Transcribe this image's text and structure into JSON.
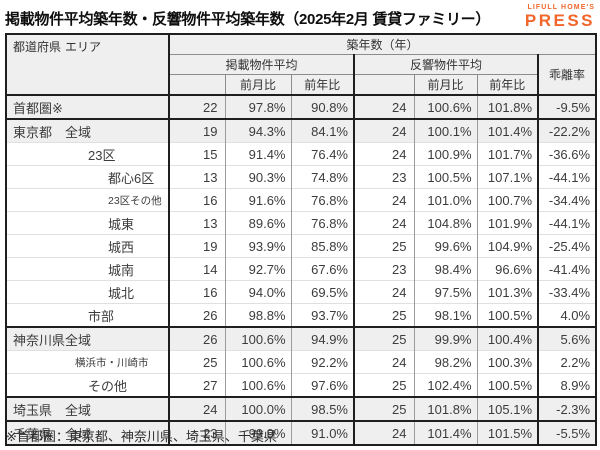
{
  "page": {
    "title": "掲載物件平均築年数・反響物件平均築年数（2025年2月 賃貸ファミリー）",
    "logo": {
      "top": "LIFULL HOME'S",
      "main": "PRESS",
      "color": "#F0662B"
    },
    "footnote": "※首都圏：東京都、神奈川県、埼玉県、千葉県"
  },
  "table": {
    "header": {
      "corner_pref": "都道府県",
      "corner_area": "エリア",
      "top": "築年数（年）",
      "group_listed": "掲載物件平均",
      "group_response": "反響物件平均",
      "deviation": "乖離率",
      "sub_mom": "前月比",
      "sub_yoy": "前年比"
    },
    "rows": [
      {
        "pref": "首都圏※",
        "area": "",
        "indent": 0,
        "small": false,
        "shaded": true,
        "group": false,
        "cells": [
          "22",
          "97.8%",
          "90.8%",
          "24",
          "100.6%",
          "101.8%",
          "-9.5%"
        ]
      },
      {
        "pref": "東京都",
        "area": "全域",
        "indent": 0,
        "small": false,
        "shaded": true,
        "group": true,
        "cells": [
          "19",
          "94.3%",
          "84.1%",
          "24",
          "100.1%",
          "101.4%",
          "-22.2%"
        ]
      },
      {
        "pref": "23区",
        "area": "",
        "indent": 1,
        "small": false,
        "shaded": false,
        "group": false,
        "cells": [
          "15",
          "91.4%",
          "76.4%",
          "24",
          "100.9%",
          "101.7%",
          "-36.6%"
        ]
      },
      {
        "pref": "都心6区",
        "area": "",
        "indent": 2,
        "small": false,
        "shaded": false,
        "group": false,
        "cells": [
          "13",
          "90.3%",
          "74.8%",
          "23",
          "100.5%",
          "107.1%",
          "-44.1%"
        ]
      },
      {
        "pref": "23区その他",
        "area": "",
        "indent": 2,
        "small": true,
        "shaded": false,
        "group": false,
        "cells": [
          "16",
          "91.6%",
          "76.8%",
          "24",
          "101.0%",
          "100.7%",
          "-34.4%"
        ]
      },
      {
        "pref": "城東",
        "area": "",
        "indent": 2,
        "small": false,
        "shaded": false,
        "group": false,
        "cells": [
          "13",
          "89.6%",
          "76.8%",
          "24",
          "104.8%",
          "101.9%",
          "-44.1%"
        ]
      },
      {
        "pref": "城西",
        "area": "",
        "indent": 2,
        "small": false,
        "shaded": false,
        "group": false,
        "cells": [
          "19",
          "93.9%",
          "85.8%",
          "25",
          "99.6%",
          "104.9%",
          "-25.4%"
        ]
      },
      {
        "pref": "城南",
        "area": "",
        "indent": 2,
        "small": false,
        "shaded": false,
        "group": false,
        "cells": [
          "14",
          "92.7%",
          "67.6%",
          "23",
          "98.4%",
          "96.6%",
          "-41.4%"
        ]
      },
      {
        "pref": "城北",
        "area": "",
        "indent": 2,
        "small": false,
        "shaded": false,
        "group": false,
        "cells": [
          "16",
          "94.0%",
          "69.5%",
          "24",
          "97.5%",
          "101.3%",
          "-33.4%"
        ]
      },
      {
        "pref": "市部",
        "area": "",
        "indent": 1,
        "small": false,
        "shaded": false,
        "group": false,
        "cells": [
          "26",
          "98.8%",
          "93.7%",
          "25",
          "98.1%",
          "100.5%",
          "4.0%"
        ]
      },
      {
        "pref": "神奈川県",
        "area": "全域",
        "indent": 0,
        "small": false,
        "shaded": true,
        "group": true,
        "cells": [
          "26",
          "100.6%",
          "94.9%",
          "25",
          "99.9%",
          "100.4%",
          "5.6%"
        ]
      },
      {
        "pref": "横浜市・川崎市",
        "area": "",
        "indent": 1,
        "small": true,
        "shaded": false,
        "group": false,
        "cells": [
          "25",
          "100.6%",
          "92.2%",
          "24",
          "98.2%",
          "100.3%",
          "2.2%"
        ]
      },
      {
        "pref": "その他",
        "area": "",
        "indent": 1,
        "small": false,
        "shaded": false,
        "group": false,
        "cells": [
          "27",
          "100.6%",
          "97.6%",
          "25",
          "102.4%",
          "100.5%",
          "8.9%"
        ]
      },
      {
        "pref": "埼玉県",
        "area": "全域",
        "indent": 0,
        "small": false,
        "shaded": true,
        "group": true,
        "cells": [
          "24",
          "100.0%",
          "98.5%",
          "25",
          "101.8%",
          "105.1%",
          "-2.3%"
        ]
      },
      {
        "pref": "千葉県",
        "area": "全域",
        "indent": 0,
        "small": false,
        "shaded": true,
        "group": true,
        "cells": [
          "23",
          "99.9%",
          "91.0%",
          "24",
          "101.4%",
          "101.5%",
          "-5.5%"
        ]
      }
    ]
  },
  "chart_data": {
    "type": "table",
    "title": "掲載物件平均築年数・反響物件平均築年数（2025年2月 賃貸ファミリー）",
    "column_groups": [
      "都道府県 エリア",
      "築年数（年） 掲載物件平均",
      "築年数（年） 反響物件平均",
      "乖離率"
    ],
    "columns": [
      "都道府県 エリア",
      "掲載物件平均",
      "前月比",
      "前年比",
      "反響物件平均",
      "前月比",
      "前年比",
      "乖離率"
    ],
    "rows": [
      [
        "首都圏※",
        22,
        "97.8%",
        "90.8%",
        24,
        "100.6%",
        "101.8%",
        "-9.5%"
      ],
      [
        "東京都 全域",
        19,
        "94.3%",
        "84.1%",
        24,
        "100.1%",
        "101.4%",
        "-22.2%"
      ],
      [
        "東京都 23区",
        15,
        "91.4%",
        "76.4%",
        24,
        "100.9%",
        "101.7%",
        "-36.6%"
      ],
      [
        "東京都 都心6区",
        13,
        "90.3%",
        "74.8%",
        23,
        "100.5%",
        "107.1%",
        "-44.1%"
      ],
      [
        "東京都 23区その他",
        16,
        "91.6%",
        "76.8%",
        24,
        "101.0%",
        "100.7%",
        "-34.4%"
      ],
      [
        "東京都 城東",
        13,
        "89.6%",
        "76.8%",
        24,
        "104.8%",
        "101.9%",
        "-44.1%"
      ],
      [
        "東京都 城西",
        19,
        "93.9%",
        "85.8%",
        25,
        "99.6%",
        "104.9%",
        "-25.4%"
      ],
      [
        "東京都 城南",
        14,
        "92.7%",
        "67.6%",
        23,
        "98.4%",
        "96.6%",
        "-41.4%"
      ],
      [
        "東京都 城北",
        16,
        "94.0%",
        "69.5%",
        24,
        "97.5%",
        "101.3%",
        "-33.4%"
      ],
      [
        "東京都 市部",
        26,
        "98.8%",
        "93.7%",
        25,
        "98.1%",
        "100.5%",
        "4.0%"
      ],
      [
        "神奈川県 全域",
        26,
        "100.6%",
        "94.9%",
        25,
        "99.9%",
        "100.4%",
        "5.6%"
      ],
      [
        "神奈川県 横浜市・川崎市",
        25,
        "100.6%",
        "92.2%",
        24,
        "98.2%",
        "100.3%",
        "2.2%"
      ],
      [
        "神奈川県 その他",
        27,
        "100.6%",
        "97.6%",
        25,
        "102.4%",
        "100.5%",
        "8.9%"
      ],
      [
        "埼玉県 全域",
        24,
        "100.0%",
        "98.5%",
        25,
        "101.8%",
        "105.1%",
        "-2.3%"
      ],
      [
        "千葉県 全域",
        23,
        "99.9%",
        "91.0%",
        24,
        "101.4%",
        "101.5%",
        "-5.5%"
      ]
    ],
    "footnote": "※首都圏：東京都、神奈川県、埼玉県、千葉県"
  }
}
